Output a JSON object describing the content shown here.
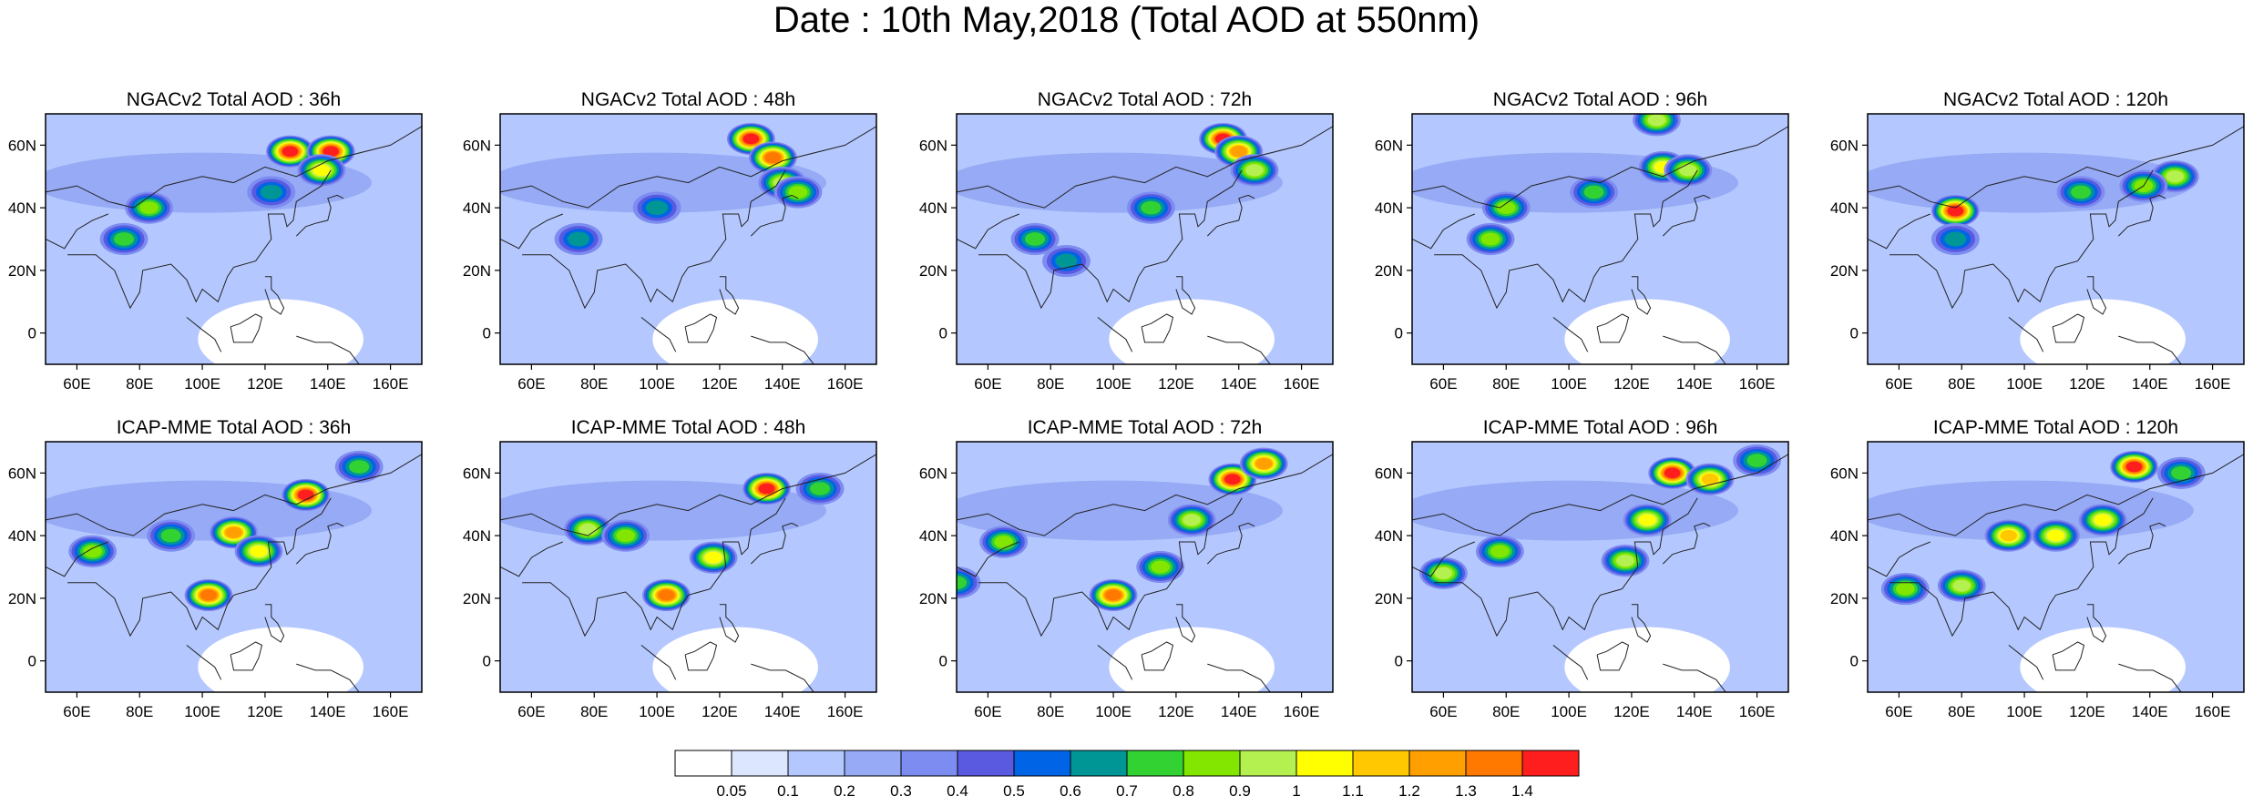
{
  "title": "Date : 10th May,2018 (Total AOD at 550nm)",
  "rows": [
    {
      "model": "NGACv2",
      "panels": [
        {
          "label": "NGACv2 Total AOD : 36h",
          "hotspots": [
            {
              "lon": 128,
              "lat": 58,
              "aod": 1.4
            },
            {
              "lon": 141,
              "lat": 58,
              "aod": 1.4
            },
            {
              "lon": 138,
              "lat": 52,
              "aod": 1.0
            },
            {
              "lon": 83,
              "lat": 40,
              "aod": 0.8
            },
            {
              "lon": 75,
              "lat": 30,
              "aod": 0.7
            },
            {
              "lon": 122,
              "lat": 45,
              "aod": 0.6
            }
          ]
        },
        {
          "label": "NGACv2 Total AOD : 48h",
          "hotspots": [
            {
              "lon": 130,
              "lat": 62,
              "aod": 1.4
            },
            {
              "lon": 137,
              "lat": 56,
              "aod": 1.3
            },
            {
              "lon": 140,
              "lat": 48,
              "aod": 0.9
            },
            {
              "lon": 145,
              "lat": 45,
              "aod": 0.8
            },
            {
              "lon": 100,
              "lat": 40,
              "aod": 0.6
            },
            {
              "lon": 75,
              "lat": 30,
              "aod": 0.6
            }
          ]
        },
        {
          "label": "NGACv2 Total AOD : 72h",
          "hotspots": [
            {
              "lon": 135,
              "lat": 62,
              "aod": 1.4
            },
            {
              "lon": 140,
              "lat": 58,
              "aod": 1.2
            },
            {
              "lon": 145,
              "lat": 52,
              "aod": 0.9
            },
            {
              "lon": 112,
              "lat": 40,
              "aod": 0.7
            },
            {
              "lon": 75,
              "lat": 30,
              "aod": 0.7
            },
            {
              "lon": 85,
              "lat": 23,
              "aod": 0.6
            }
          ]
        },
        {
          "label": "NGACv2 Total AOD : 96h",
          "hotspots": [
            {
              "lon": 130,
              "lat": 53,
              "aod": 1.0
            },
            {
              "lon": 138,
              "lat": 52,
              "aod": 0.9
            },
            {
              "lon": 75,
              "lat": 30,
              "aod": 0.8
            },
            {
              "lon": 80,
              "lat": 40,
              "aod": 0.8
            },
            {
              "lon": 108,
              "lat": 45,
              "aod": 0.7
            },
            {
              "lon": 128,
              "lat": 68,
              "aod": 0.9
            }
          ]
        },
        {
          "label": "NGACv2 Total AOD : 120h",
          "hotspots": [
            {
              "lon": 78,
              "lat": 39,
              "aod": 1.4
            },
            {
              "lon": 148,
              "lat": 50,
              "aod": 0.9
            },
            {
              "lon": 138,
              "lat": 47,
              "aod": 0.8
            },
            {
              "lon": 118,
              "lat": 45,
              "aod": 0.7
            },
            {
              "lon": 78,
              "lat": 30,
              "aod": 0.6
            }
          ]
        }
      ]
    },
    {
      "model": "ICAP-MME",
      "panels": [
        {
          "label": "ICAP-MME Total AOD : 36h",
          "hotspots": [
            {
              "lon": 133,
              "lat": 53,
              "aod": 1.4
            },
            {
              "lon": 110,
              "lat": 41,
              "aod": 1.2
            },
            {
              "lon": 118,
              "lat": 35,
              "aod": 1.0
            },
            {
              "lon": 102,
              "lat": 21,
              "aod": 1.3
            },
            {
              "lon": 65,
              "lat": 35,
              "aod": 0.8
            },
            {
              "lon": 90,
              "lat": 40,
              "aod": 0.7
            },
            {
              "lon": 150,
              "lat": 62,
              "aod": 0.7
            }
          ]
        },
        {
          "label": "ICAP-MME Total AOD : 48h",
          "hotspots": [
            {
              "lon": 135,
              "lat": 55,
              "aod": 1.4
            },
            {
              "lon": 118,
              "lat": 33,
              "aod": 1.0
            },
            {
              "lon": 103,
              "lat": 21,
              "aod": 1.3
            },
            {
              "lon": 78,
              "lat": 42,
              "aod": 0.9
            },
            {
              "lon": 90,
              "lat": 40,
              "aod": 0.8
            },
            {
              "lon": 152,
              "lat": 55,
              "aod": 0.7
            }
          ]
        },
        {
          "label": "ICAP-MME Total AOD : 72h",
          "hotspots": [
            {
              "lon": 138,
              "lat": 58,
              "aod": 1.4
            },
            {
              "lon": 148,
              "lat": 63,
              "aod": 1.2
            },
            {
              "lon": 125,
              "lat": 45,
              "aod": 0.9
            },
            {
              "lon": 115,
              "lat": 30,
              "aod": 0.8
            },
            {
              "lon": 100,
              "lat": 21,
              "aod": 1.3
            },
            {
              "lon": 65,
              "lat": 38,
              "aod": 0.8
            },
            {
              "lon": 50,
              "lat": 25,
              "aod": 0.7
            }
          ]
        },
        {
          "label": "ICAP-MME Total AOD : 96h",
          "hotspots": [
            {
              "lon": 133,
              "lat": 60,
              "aod": 1.4
            },
            {
              "lon": 145,
              "lat": 58,
              "aod": 1.1
            },
            {
              "lon": 125,
              "lat": 45,
              "aod": 1.0
            },
            {
              "lon": 118,
              "lat": 32,
              "aod": 0.9
            },
            {
              "lon": 60,
              "lat": 28,
              "aod": 0.9
            },
            {
              "lon": 78,
              "lat": 35,
              "aod": 0.8
            },
            {
              "lon": 160,
              "lat": 64,
              "aod": 0.7
            }
          ]
        },
        {
          "label": "ICAP-MME Total AOD : 120h",
          "hotspots": [
            {
              "lon": 135,
              "lat": 62,
              "aod": 1.4
            },
            {
              "lon": 125,
              "lat": 45,
              "aod": 1.0
            },
            {
              "lon": 110,
              "lat": 40,
              "aod": 1.0
            },
            {
              "lon": 95,
              "lat": 40,
              "aod": 1.1
            },
            {
              "lon": 80,
              "lat": 24,
              "aod": 0.9
            },
            {
              "lon": 62,
              "lat": 23,
              "aod": 0.8
            },
            {
              "lon": 150,
              "lat": 60,
              "aod": 0.7
            }
          ]
        }
      ]
    }
  ],
  "axes": {
    "lon_range": [
      50,
      170
    ],
    "lat_range": [
      -10,
      70
    ],
    "x_ticks": [
      {
        "value": 60,
        "label": "60E"
      },
      {
        "value": 80,
        "label": "80E"
      },
      {
        "value": 100,
        "label": "100E"
      },
      {
        "value": 120,
        "label": "120E"
      },
      {
        "value": 140,
        "label": "140E"
      },
      {
        "value": 160,
        "label": "160E"
      }
    ],
    "y_ticks": [
      {
        "value": 0,
        "label": "0"
      },
      {
        "value": 20,
        "label": "20N"
      },
      {
        "value": 40,
        "label": "40N"
      },
      {
        "value": 60,
        "label": "60N"
      }
    ]
  },
  "colorbar": {
    "colors": [
      "#ffffff",
      "#dce6ff",
      "#b4c8ff",
      "#96aaf5",
      "#7d8cf0",
      "#5a5ae1",
      "#0064e6",
      "#009696",
      "#32d232",
      "#82e600",
      "#b4f050",
      "#ffff00",
      "#ffc800",
      "#ffa000",
      "#ff7800",
      "#ff1e1e"
    ],
    "labels": [
      "0.05",
      "0.1",
      "0.2",
      "0.3",
      "0.4",
      "0.5",
      "0.6",
      "0.7",
      "0.8",
      "0.9",
      "1",
      "1.1",
      "1.2",
      "1.3",
      "1.4"
    ],
    "thresholds": [
      0.05,
      0.1,
      0.2,
      0.3,
      0.4,
      0.5,
      0.6,
      0.7,
      0.8,
      0.9,
      1.0,
      1.1,
      1.2,
      1.3,
      1.4
    ]
  }
}
